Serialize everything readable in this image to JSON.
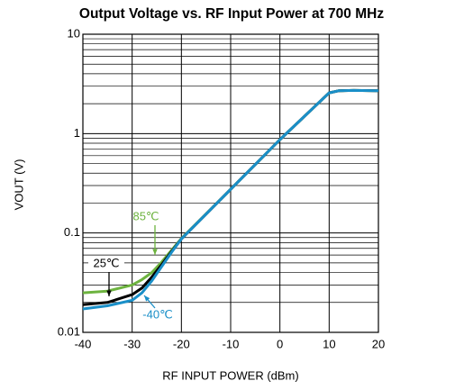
{
  "chart_data": {
    "type": "line",
    "title": "Output Voltage vs. RF Input Power at 700 MHz",
    "xlabel": "RF INPUT POWER (dBm)",
    "ylabel": "VOUT (V)",
    "x": [
      -40,
      -35,
      -30,
      -28,
      -26,
      -24,
      -22,
      -20,
      -10,
      0,
      10,
      12,
      15,
      20
    ],
    "series": [
      {
        "name": "85℃",
        "color": "#6db33f",
        "values": [
          0.025,
          0.026,
          0.03,
          0.034,
          0.04,
          0.051,
          0.067,
          0.088,
          0.275,
          0.87,
          2.57,
          2.7,
          2.72,
          2.7
        ]
      },
      {
        "name": "25℃",
        "color": "#000000",
        "values": [
          0.019,
          0.02,
          0.024,
          0.028,
          0.036,
          0.048,
          0.065,
          0.087,
          0.275,
          0.87,
          2.57,
          2.7,
          2.72,
          2.7
        ]
      },
      {
        "name": "-40℃",
        "color": "#1a8fc8",
        "values": [
          0.0172,
          0.0185,
          0.021,
          0.025,
          0.033,
          0.046,
          0.064,
          0.087,
          0.275,
          0.87,
          2.57,
          2.7,
          2.72,
          2.7
        ]
      }
    ],
    "xlim": [
      -40,
      20
    ],
    "xticks": [
      -40,
      -30,
      -20,
      -10,
      0,
      10,
      20
    ],
    "ylim": [
      0.01,
      10
    ],
    "yticks": [
      0.01,
      0.1,
      1,
      10
    ],
    "ylog": true,
    "grid": true,
    "y_minor_grid": true
  }
}
